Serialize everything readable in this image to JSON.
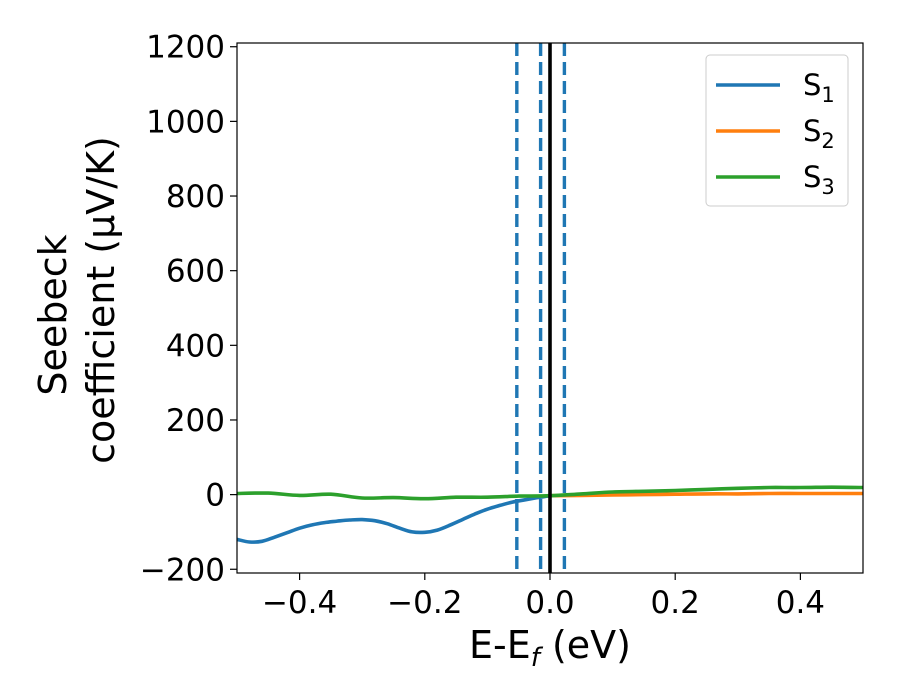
{
  "chart_data": {
    "type": "line",
    "xlabel_main": "E-E",
    "xlabel_sub": "f",
    "xlabel_suffix": " (eV)",
    "ylabel_line1": "Seebeck",
    "ylabel_line2": "coefficient  (μV/K)",
    "xlim": [
      -0.5,
      0.5
    ],
    "ylim": [
      -210,
      1210
    ],
    "xticks": [
      -0.4,
      -0.2,
      0.0,
      0.2,
      0.4
    ],
    "xtick_labels": [
      "−0.4",
      "−0.2",
      "0.0",
      "0.2",
      "0.4"
    ],
    "yticks": [
      -200,
      0,
      200,
      400,
      600,
      800,
      1000,
      1200
    ],
    "ytick_labels": [
      "−200",
      "0",
      "200",
      "400",
      "600",
      "800",
      "1000",
      "1200"
    ],
    "legend_position": "top-right",
    "legend": [
      {
        "base": "S",
        "sub": "1",
        "color": "#1f77b4"
      },
      {
        "base": "S",
        "sub": "2",
        "color": "#ff7f0e"
      },
      {
        "base": "S",
        "sub": "3",
        "color": "#2ca02c"
      }
    ],
    "series": [
      {
        "color": "#1f77b4",
        "x": [
          -0.5,
          -0.48,
          -0.46,
          -0.44,
          -0.42,
          -0.4,
          -0.38,
          -0.36,
          -0.34,
          -0.32,
          -0.3,
          -0.28,
          -0.26,
          -0.24,
          -0.22,
          -0.2,
          -0.18,
          -0.16,
          -0.14,
          -0.12,
          -0.1,
          -0.08,
          -0.06,
          -0.04,
          -0.02,
          0.0
        ],
        "y": [
          -120,
          -127,
          -125,
          -114,
          -102,
          -90,
          -81,
          -75,
          -71,
          -68,
          -67,
          -70,
          -78,
          -90,
          -100,
          -101,
          -95,
          -82,
          -67,
          -52,
          -39,
          -29,
          -20,
          -14,
          -8,
          -3
        ]
      },
      {
        "color": "#ff7f0e",
        "x": [
          0.0,
          0.05,
          0.1,
          0.15,
          0.2,
          0.25,
          0.3,
          0.35,
          0.4,
          0.45,
          0.5
        ],
        "y": [
          -3,
          -2,
          -1,
          0,
          1,
          2,
          2,
          3,
          3,
          3,
          3
        ]
      },
      {
        "color": "#2ca02c",
        "x": [
          -0.5,
          -0.45,
          -0.4,
          -0.35,
          -0.3,
          -0.25,
          -0.2,
          -0.15,
          -0.1,
          -0.05,
          0.0,
          0.05,
          0.1,
          0.15,
          0.2,
          0.25,
          0.3,
          0.35,
          0.4,
          0.45,
          0.5
        ],
        "y": [
          3,
          4,
          -2,
          1,
          -9,
          -8,
          -11,
          -7,
          -7,
          -4,
          -3,
          2,
          7,
          9,
          11,
          14,
          17,
          19,
          19,
          20,
          19
        ]
      }
    ],
    "vlines": [
      {
        "x": 0.0,
        "style": "solid",
        "color": "#000000"
      },
      {
        "x": -0.053,
        "style": "dashed",
        "color": "#1f77b4"
      },
      {
        "x": -0.015,
        "style": "dashed",
        "color": "#1f77b4"
      },
      {
        "x": 0.023,
        "style": "dashed",
        "color": "#1f77b4"
      }
    ]
  }
}
